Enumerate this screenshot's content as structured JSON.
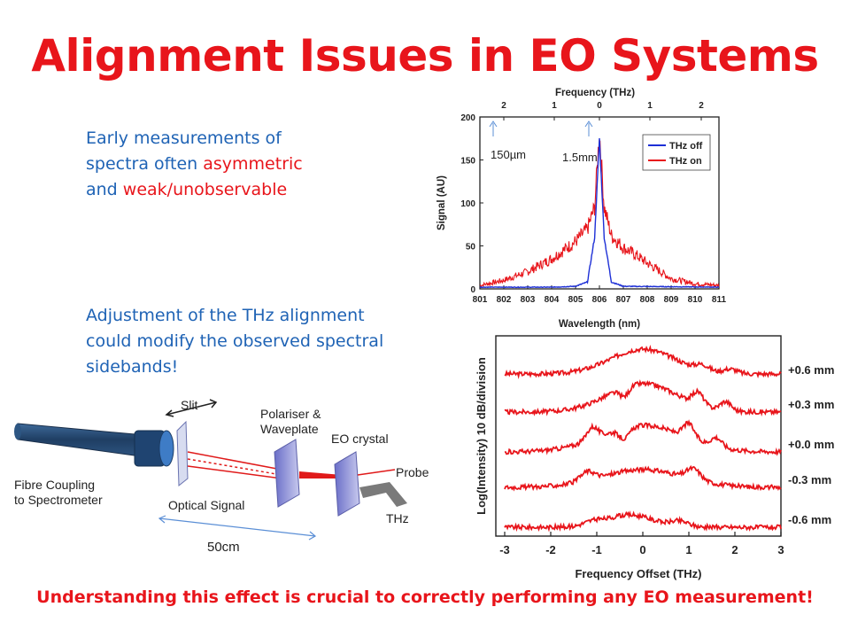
{
  "slide": {
    "title": "Alignment Issues in EO Systems",
    "para1": {
      "line1": "Early measurements of",
      "line2_pre": "spectra often ",
      "line2_red": "asymmetric",
      "line3_pre": "and ",
      "line3_red": "weak/unobservable"
    },
    "para2": {
      "line1": "Adjustment of the THz alignment",
      "line2": "could modify the observed spectral",
      "line3": "sidebands!"
    },
    "footer": "Understanding this effect is crucial to correctly performing any EO measurement!",
    "colors": {
      "title": "#e8151b",
      "body": "#1f63b5",
      "highlight": "#e8151b"
    }
  },
  "spectrum_plot": {
    "top_axis_label": "Frequency (THz)",
    "top_ticks": [
      "2",
      "1",
      "0",
      "1",
      "2"
    ],
    "ylabel": "Signal (AU)",
    "xlabel": "Wavelength (nm)",
    "yticks": [
      "0",
      "50",
      "100",
      "150",
      "200"
    ],
    "xticks": [
      "801",
      "802",
      "803",
      "804",
      "805",
      "806",
      "807",
      "808",
      "809",
      "810",
      "811"
    ],
    "legend": [
      "THz off",
      "THz on"
    ],
    "annotation_1": "150µm",
    "annotation_2": "1.5mm"
  },
  "sideband_plot": {
    "ylabel": "Log(Intensity) 10 dB/division",
    "xlabel": "Frequency Offset (THz)",
    "xticks": [
      "-3",
      "-2",
      "-1",
      "0",
      "1",
      "2",
      "3"
    ],
    "offset_labels": [
      "+0.6 mm",
      "+0.3 mm",
      "+0.0 mm",
      "-0.3 mm",
      "-0.6 mm"
    ]
  },
  "setup_diagram": {
    "slit": "Slit",
    "polariser_line1": "Polariser &",
    "polariser_line2": "Waveplate",
    "eo_crystal": "EO crystal",
    "probe": "Probe",
    "thz": "THz",
    "fibre_line1": "Fibre Coupling",
    "fibre_line2": "to Spectrometer",
    "optical_signal": "Optical Signal",
    "distance": "50cm"
  },
  "chart_data": [
    {
      "type": "line",
      "title": "",
      "xlabel": "Wavelength (nm)",
      "ylabel": "Signal (AU)",
      "secondary_xlabel": "Frequency (THz)",
      "xlim": [
        801,
        811
      ],
      "ylim": [
        0,
        200
      ],
      "series": [
        {
          "name": "THz off",
          "color": "#1d2fd6",
          "x": [
            801,
            804,
            805,
            805.5,
            805.8,
            806,
            806.2,
            806.5,
            807,
            811
          ],
          "y": [
            2,
            2,
            3,
            8,
            60,
            175,
            60,
            8,
            3,
            2
          ]
        },
        {
          "name": "THz on",
          "color": "#e8151b",
          "x": [
            801,
            802,
            803,
            804,
            804.5,
            805,
            805.5,
            805.8,
            806,
            806.2,
            806.5,
            807,
            807.5,
            808,
            809,
            810,
            811
          ],
          "y": [
            4,
            10,
            20,
            35,
            45,
            55,
            70,
            95,
            182,
            95,
            62,
            48,
            40,
            30,
            12,
            6,
            4
          ]
        }
      ],
      "legend_position": "top-right"
    },
    {
      "type": "line",
      "title": "",
      "xlabel": "Frequency Offset (THz)",
      "ylabel": "Log(Intensity) 10 dB/division",
      "xlim": [
        -3,
        3
      ],
      "series": [
        {
          "name": "+0.6 mm"
        },
        {
          "name": "+0.3 mm"
        },
        {
          "name": "+0.0 mm"
        },
        {
          "name": "-0.3 mm"
        },
        {
          "name": "-0.6 mm"
        }
      ]
    }
  ]
}
